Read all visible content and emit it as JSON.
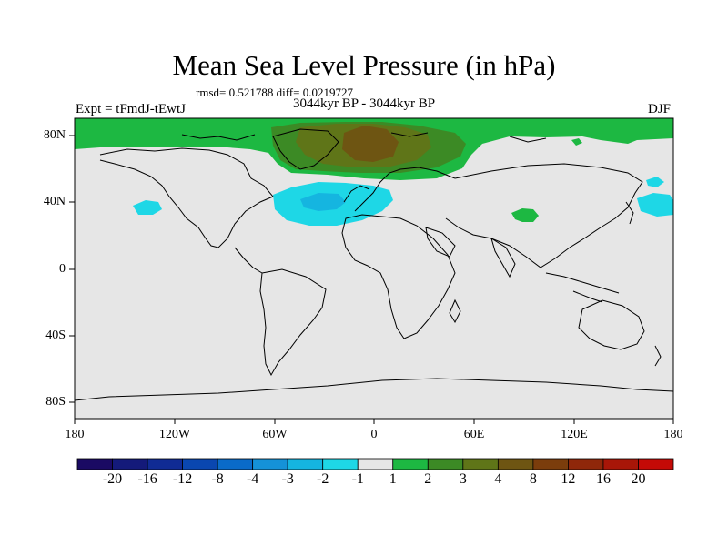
{
  "title": "Mean Sea Level Pressure (in hPa)",
  "stats": "rmsd= 0.521788 diff= 0.0219727",
  "period": "3044kyr BP - 3044kyr BP",
  "experiment": "Expt = tFmdJ-tEwtJ",
  "season": "DJF",
  "lat_labels": [
    "80N",
    "40N",
    "0",
    "40S",
    "80S"
  ],
  "lon_labels": [
    "180",
    "120W",
    "60W",
    "0",
    "60E",
    "120E",
    "180"
  ],
  "colorbar": {
    "labels": [
      "-20",
      "-16",
      "-12",
      "-8",
      "-4",
      "-3",
      "-2",
      "-1",
      "1",
      "2",
      "3",
      "4",
      "8",
      "12",
      "16",
      "20"
    ],
    "colors": [
      "#1a0a63",
      "#141a7a",
      "#102b94",
      "#0a47b0",
      "#0a6bc9",
      "#1592d8",
      "#15b5e0",
      "#1ed7e6",
      "#e6e6e6",
      "#1db842",
      "#3c8a25",
      "#5f7518",
      "#6e5512",
      "#7b3d0c",
      "#8f270a",
      "#a81608",
      "#c40a06"
    ]
  },
  "colors": {
    "land_sea_background": "#e6e6e6",
    "coastline": "#000000"
  }
}
